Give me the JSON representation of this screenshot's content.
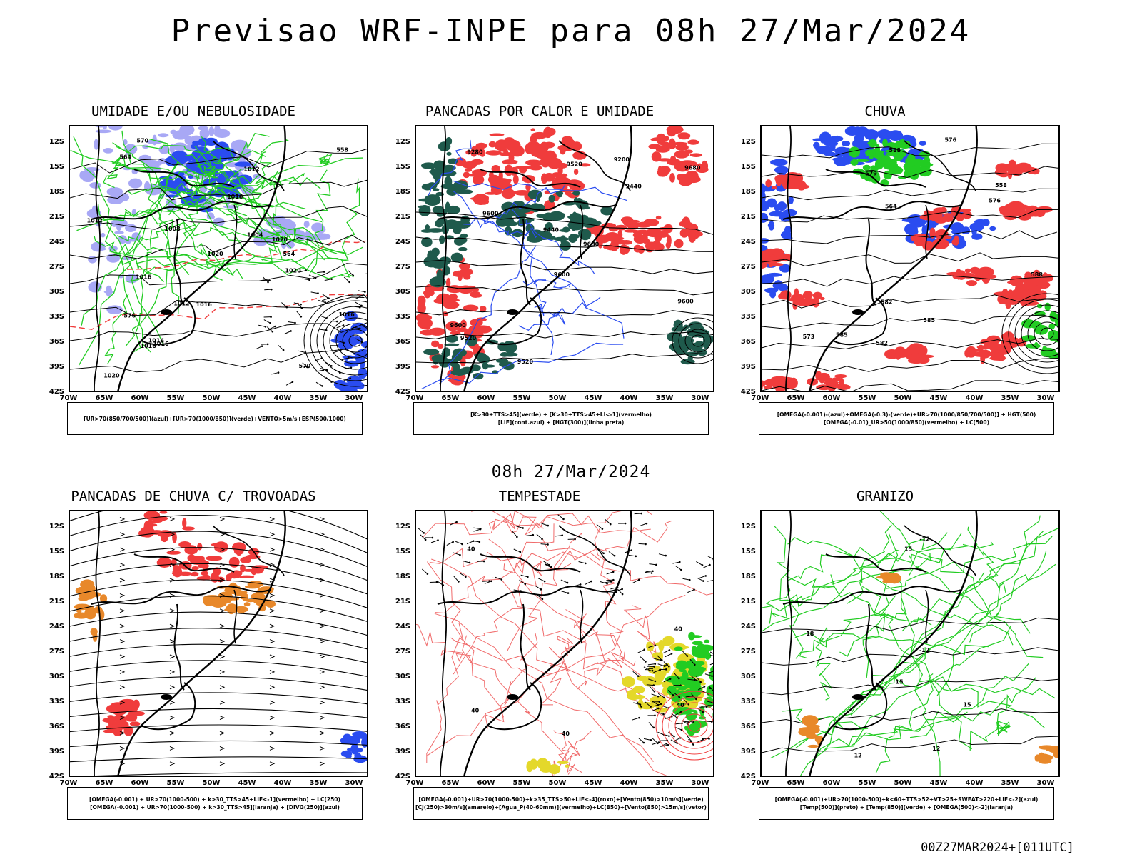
{
  "header": {
    "title": "Previsao WRF-INPE  para 08h 27/Mar/2024",
    "subtitle": "08h 27/Mar/2024",
    "footer": "00Z27MAR2024+[011UTC]"
  },
  "axes": {
    "lat_labels": [
      "12S",
      "15S",
      "18S",
      "21S",
      "24S",
      "27S",
      "30S",
      "33S",
      "36S",
      "39S",
      "42S"
    ],
    "lon_labels": [
      "70W",
      "65W",
      "60W",
      "55W",
      "50W",
      "45W",
      "40W",
      "35W",
      "30W"
    ]
  },
  "panels": [
    {
      "title": "UMIDADE E/OU NEBULOSIDADE",
      "legend": [
        "[UR>70(850/700/500)](azul)+[UR>70(1000/850)](verde)+VENTO>5m/s+ESP(500/1000)"
      ],
      "contour_labels": [
        "1016",
        "1012",
        "1016",
        "1016",
        "1020",
        "1016",
        "1012",
        "1016",
        "1020",
        "1016",
        "1012",
        "1008",
        "1004",
        "1020",
        "1016",
        "1020",
        "570",
        "576",
        "570",
        "564",
        "558",
        "564"
      ]
    },
    {
      "title": "PANCADAS POR CALOR E UMIDADE",
      "legend": [
        "[K>30+TTS>45](verde) + [K>30+TTS>45+LI<-1](vermelho)",
        "[LIF](cont.azul) + [HGT(300)](linha preta)"
      ],
      "contour_labels": [
        "9680",
        "9680",
        "9600",
        "9600",
        "9600",
        "9520",
        "9600",
        "9520",
        "9520",
        "9440",
        "9440",
        "9280",
        "9200"
      ]
    },
    {
      "title": "CHUVA",
      "legend": [
        "[OMEGA(-0.001)-(azul)+OMEGA(-0.3)-(verde)+UR>70(1000/850/700/500)] + HGT(500)",
        "[OMEGA(-0.01)_UR>50(1000/850)(vermelho) + LC(500)"
      ],
      "contour_labels": [
        "588",
        "588",
        "585",
        "585",
        "582",
        "582",
        "579",
        "576",
        "576",
        "573",
        "564",
        "558"
      ]
    },
    {
      "title": "PANCADAS DE CHUVA C/ TROVOADAS",
      "legend": [
        "[OMEGA(-0.001) + UR>70(1000-500) + k>30_TTS>45+LIF<-1](vermelho) + LC(250)",
        "[OMEGA(-0.001) + UR>70(1000-500) + k>30_TTS>45](laranja) + [DIVG(250)](azul)"
      ],
      "contour_labels": []
    },
    {
      "title": "TEMPESTADE",
      "legend": [
        "[OMEGA(-0.001)+UR>70(1000-500)+k>35_TTS>50+LIF<-4](roxo)+[Vento(850)>10m/s](verde)",
        "[CJ(250)>30m/s](amarelo)+[Agua_P(40-60mm)](vermelho)+LC(850)+[Vento(850)>15m/s](vetor)"
      ],
      "contour_labels": [
        "40",
        "40",
        "40",
        "40",
        "40"
      ]
    },
    {
      "title": "GRANIZO",
      "legend": [
        "[OMEGA(-0.001)+UR>70(1000-500)+k<60+TTS>52+VT>25+SWEAT>220+LIF<-2](azul)",
        "[Temp(500)](preto) + [Temp(850)](verde) + [OMEGA(500)<-2](laranja)"
      ],
      "contour_labels": [
        "-12",
        "-12",
        "18",
        "15",
        "15",
        "12",
        "12",
        "15"
      ]
    }
  ],
  "colors": {
    "red": "#f03c3c",
    "green": "#22cc22",
    "blue": "#2a4cf0",
    "lightblue": "#a8a8f5",
    "orange": "#e8882a",
    "darkgreen": "#1f5a4c",
    "yellow": "#e4d82a",
    "lightred": "#f06a6a"
  }
}
